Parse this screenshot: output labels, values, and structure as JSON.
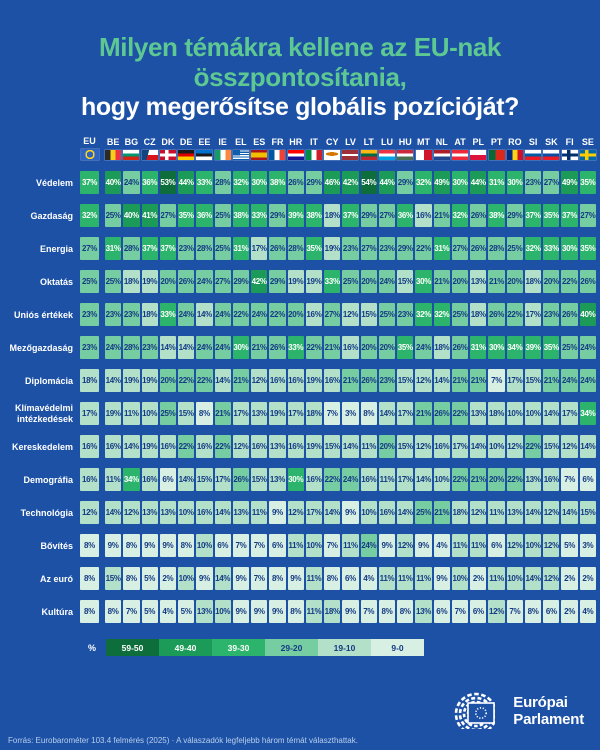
{
  "colors": {
    "background": "#1c51a6",
    "title_green": "#5ec892",
    "navy_text": "#153a85",
    "footer_text": "#b9cfec",
    "band_59_50": "#0d6e3c",
    "band_49_40": "#1b9a58",
    "band_39_30": "#2db46c",
    "band_29_20": "#76cda2",
    "band_19_10": "#b2e0c9",
    "band_9_0": "#d8f0e3"
  },
  "title": {
    "line1": "Milyen témákra kellene az EU-nak",
    "line2": "összpontosítania,",
    "line3": "hogy megerősítse globális pozícióját?"
  },
  "chart_data": {
    "type": "heatmap",
    "title": "Milyen témákra kellene az EU-nak összpontosítania, hogy megerősítse globális pozícióját?",
    "unit": "%",
    "categories": [
      "EU",
      "BE",
      "BG",
      "CZ",
      "DK",
      "DE",
      "EE",
      "IE",
      "EL",
      "ES",
      "FR",
      "HR",
      "IT",
      "CY",
      "LV",
      "LT",
      "LU",
      "HU",
      "MT",
      "NL",
      "AT",
      "PL",
      "PT",
      "RO",
      "SI",
      "SK",
      "FI",
      "SE"
    ],
    "series": [
      {
        "name": "Védelem",
        "values": [
          37,
          40,
          24,
          36,
          53,
          44,
          33,
          28,
          32,
          30,
          38,
          26,
          29,
          46,
          42,
          54,
          44,
          29,
          32,
          49,
          30,
          44,
          31,
          30,
          23,
          27,
          49,
          35
        ]
      },
      {
        "name": "Gazdaság",
        "values": [
          32,
          25,
          40,
          41,
          27,
          35,
          36,
          25,
          38,
          33,
          29,
          39,
          38,
          18,
          37,
          29,
          27,
          36,
          16,
          21,
          32,
          26,
          38,
          29,
          37,
          35,
          37,
          27
        ]
      },
      {
        "name": "Energia",
        "values": [
          27,
          31,
          28,
          37,
          37,
          23,
          28,
          25,
          31,
          17,
          26,
          28,
          35,
          19,
          23,
          27,
          23,
          29,
          22,
          31,
          27,
          26,
          28,
          25,
          32,
          33,
          30,
          35
        ]
      },
      {
        "name": "Oktatás",
        "values": [
          25,
          25,
          18,
          19,
          20,
          26,
          24,
          27,
          29,
          42,
          29,
          19,
          19,
          33,
          25,
          20,
          24,
          15,
          30,
          21,
          20,
          13,
          21,
          20,
          18,
          20,
          22,
          26
        ]
      },
      {
        "name": "Uniós értékek",
        "values": [
          23,
          23,
          23,
          18,
          33,
          24,
          14,
          24,
          22,
          24,
          22,
          20,
          16,
          27,
          12,
          15,
          25,
          23,
          32,
          32,
          25,
          18,
          26,
          22,
          17,
          23,
          26,
          40
        ]
      },
      {
        "name": "Mezőgazdaság",
        "values": [
          23,
          24,
          28,
          23,
          14,
          14,
          24,
          24,
          30,
          21,
          26,
          33,
          22,
          21,
          16,
          20,
          20,
          35,
          24,
          18,
          26,
          31,
          30,
          34,
          39,
          35,
          25,
          24
        ]
      },
      {
        "name": "Diplomácia",
        "values": [
          18,
          14,
          19,
          19,
          20,
          22,
          22,
          14,
          21,
          12,
          16,
          16,
          19,
          16,
          21,
          26,
          23,
          15,
          12,
          14,
          21,
          21,
          7,
          17,
          15,
          21,
          24,
          24
        ]
      },
      {
        "name": "Klímavédelmi intézkedések",
        "values": [
          17,
          19,
          11,
          10,
          25,
          15,
          8,
          21,
          17,
          13,
          19,
          17,
          18,
          7,
          3,
          8,
          14,
          17,
          21,
          26,
          22,
          13,
          18,
          10,
          10,
          14,
          17,
          34
        ]
      },
      {
        "name": "Kereskedelem",
        "values": [
          16,
          16,
          14,
          19,
          16,
          22,
          16,
          22,
          12,
          16,
          13,
          16,
          19,
          15,
          14,
          11,
          20,
          15,
          12,
          16,
          17,
          14,
          10,
          12,
          22,
          15,
          12,
          14
        ]
      },
      {
        "name": "Demográfia",
        "values": [
          16,
          11,
          34,
          16,
          6,
          14,
          15,
          17,
          26,
          15,
          13,
          30,
          16,
          22,
          24,
          16,
          11,
          17,
          14,
          10,
          22,
          21,
          20,
          22,
          13,
          16,
          7,
          6
        ]
      },
      {
        "name": "Technológia",
        "values": [
          12,
          14,
          12,
          13,
          13,
          10,
          16,
          14,
          13,
          11,
          9,
          12,
          17,
          14,
          9,
          10,
          16,
          14,
          25,
          21,
          18,
          12,
          11,
          13,
          14,
          12,
          14,
          15
        ]
      },
      {
        "name": "Bővítés",
        "values": [
          8,
          9,
          8,
          9,
          9,
          8,
          10,
          6,
          7,
          7,
          6,
          11,
          10,
          7,
          11,
          24,
          9,
          12,
          9,
          4,
          11,
          11,
          6,
          12,
          10,
          12,
          5,
          3
        ]
      },
      {
        "name": "Az euró",
        "values": [
          8,
          15,
          8,
          5,
          2,
          10,
          9,
          14,
          9,
          7,
          8,
          9,
          11,
          8,
          6,
          4,
          11,
          11,
          11,
          9,
          10,
          2,
          11,
          10,
          14,
          12,
          2,
          2
        ]
      },
      {
        "name": "Kultúra",
        "values": [
          8,
          8,
          7,
          5,
          4,
          5,
          13,
          10,
          9,
          9,
          9,
          8,
          11,
          18,
          9,
          7,
          8,
          8,
          13,
          6,
          7,
          6,
          12,
          7,
          8,
          6,
          2,
          4
        ]
      }
    ],
    "legend_position": "bottom",
    "color_bins": [
      {
        "label": "59-50",
        "band": "b50"
      },
      {
        "label": "49-40",
        "band": "b40"
      },
      {
        "label": "39-30",
        "band": "b30"
      },
      {
        "label": "29-20",
        "band": "b20"
      },
      {
        "label": "19-10",
        "band": "b10"
      },
      {
        "label": "9-0",
        "band": "b0"
      }
    ]
  },
  "flags": {
    "EU": {
      "t": "eu"
    },
    "BE": {
      "t": "v",
      "c": [
        "#2d2926",
        "#f7d117",
        "#ef3340"
      ]
    },
    "BG": {
      "t": "h",
      "c": [
        "#ffffff",
        "#00966e",
        "#d62612"
      ]
    },
    "CZ": {
      "t": "cz"
    },
    "DK": {
      "t": "cross",
      "bg": "#c8102e",
      "c": "#ffffff"
    },
    "DE": {
      "t": "h",
      "c": [
        "#1a1a1a",
        "#dd0000",
        "#ffce00"
      ]
    },
    "EE": {
      "t": "h",
      "c": [
        "#0072ce",
        "#1a1a1a",
        "#ffffff"
      ]
    },
    "IE": {
      "t": "v",
      "c": [
        "#169b62",
        "#ffffff",
        "#ff883e"
      ]
    },
    "EL": {
      "t": "el"
    },
    "ES": {
      "t": "h",
      "c": [
        "#aa151b",
        "#f1bf00",
        "#aa151b"
      ],
      "w": [
        1,
        2,
        1
      ]
    },
    "FR": {
      "t": "v",
      "c": [
        "#0055a4",
        "#ffffff",
        "#ef4135"
      ]
    },
    "HR": {
      "t": "h",
      "c": [
        "#ff0000",
        "#ffffff",
        "#171796"
      ]
    },
    "IT": {
      "t": "v",
      "c": [
        "#008c45",
        "#ffffff",
        "#cd212a"
      ]
    },
    "CY": {
      "t": "cy"
    },
    "LV": {
      "t": "h",
      "c": [
        "#9e3039",
        "#ffffff",
        "#9e3039"
      ],
      "w": [
        2,
        1,
        2
      ]
    },
    "LT": {
      "t": "h",
      "c": [
        "#fdb913",
        "#006a44",
        "#c1272d"
      ]
    },
    "LU": {
      "t": "h",
      "c": [
        "#ef3340",
        "#ffffff",
        "#00a2e1"
      ]
    },
    "HU": {
      "t": "h",
      "c": [
        "#ce2939",
        "#ffffff",
        "#477050"
      ]
    },
    "MT": {
      "t": "v",
      "c": [
        "#ffffff",
        "#cf142b"
      ]
    },
    "NL": {
      "t": "h",
      "c": [
        "#ae1c28",
        "#ffffff",
        "#21468b"
      ]
    },
    "AT": {
      "t": "h",
      "c": [
        "#ed2939",
        "#ffffff",
        "#ed2939"
      ]
    },
    "PL": {
      "t": "h",
      "c": [
        "#ffffff",
        "#dc143c"
      ]
    },
    "PT": {
      "t": "v",
      "c": [
        "#046a38",
        "#da291c"
      ],
      "w": [
        2,
        3
      ]
    },
    "RO": {
      "t": "v",
      "c": [
        "#002b7f",
        "#fcd116",
        "#ce1126"
      ]
    },
    "SI": {
      "t": "h",
      "c": [
        "#ffffff",
        "#005da4",
        "#ed1c24"
      ]
    },
    "SK": {
      "t": "h",
      "c": [
        "#ffffff",
        "#0b4ea2",
        "#ee1c25"
      ]
    },
    "FI": {
      "t": "cross",
      "bg": "#ffffff",
      "c": "#002f6c"
    },
    "SE": {
      "t": "cross",
      "bg": "#006aa7",
      "c": "#fecc02"
    }
  },
  "legend": {
    "unit": "%"
  },
  "footer": {
    "source": "Forrás: Eurobarométer 103.4 felmérés (2025) · A válaszadók legfeljebb három témát választhattak."
  },
  "logo": {
    "line1": "Európai",
    "line2": "Parlament"
  }
}
